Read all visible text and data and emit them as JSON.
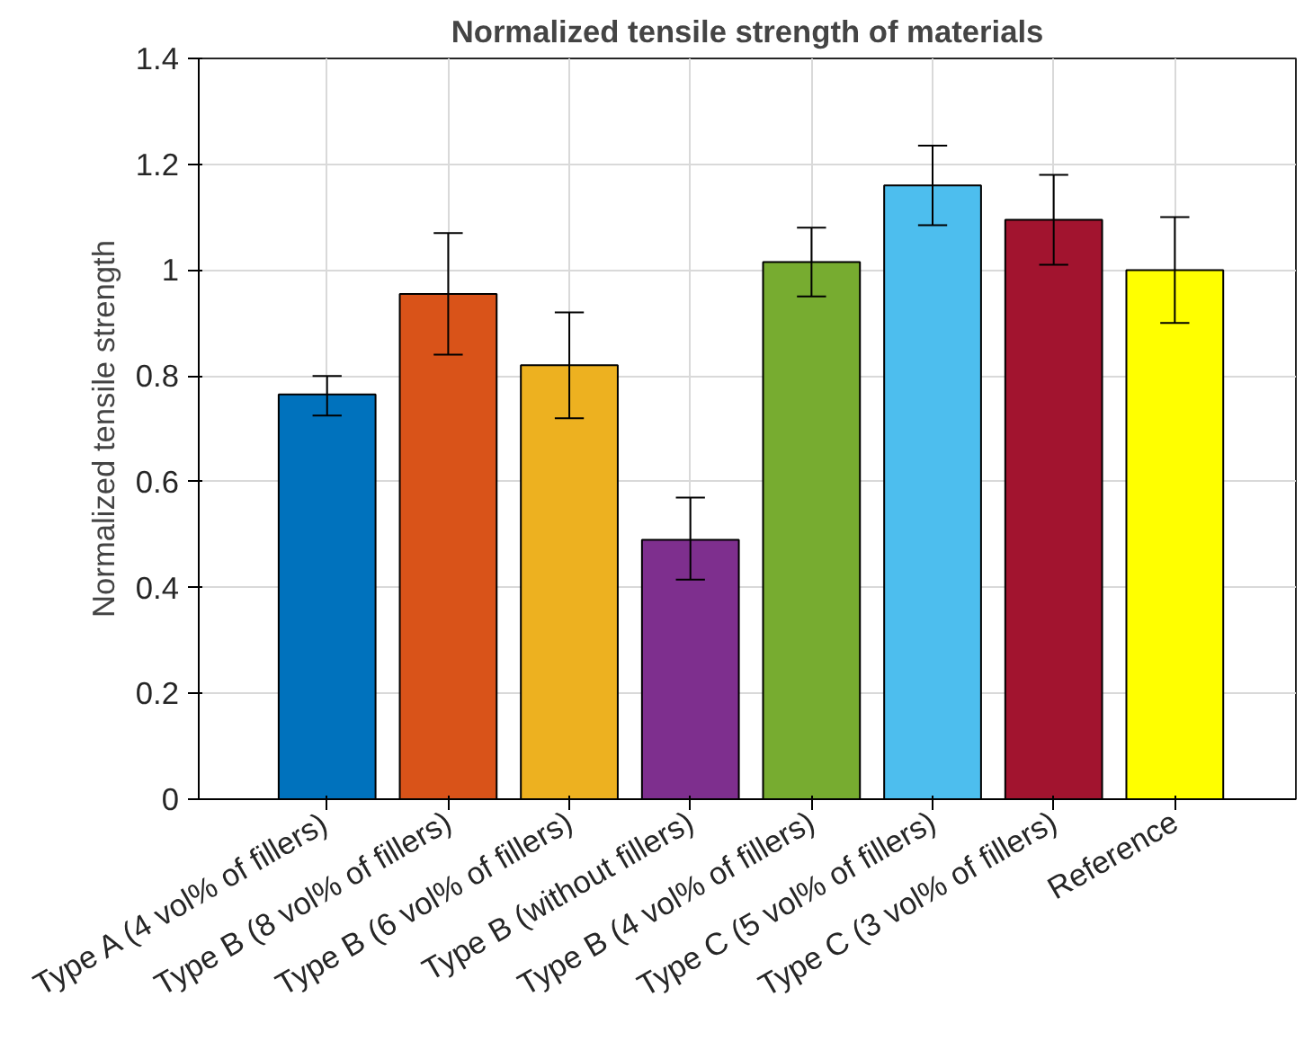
{
  "chart_data": {
    "type": "bar",
    "title": "Normalized tensile strength of materials",
    "ylabel": "Normalized tensile strength",
    "categories": [
      "Type A (4 vol% of fillers)",
      "Type B (8 vol% of fillers)",
      "Type B (6 vol% of fillers)",
      "Type B (without fillers)",
      "Type B (4 vol% of fillers)",
      "Type C (5 vol% of fillers)",
      "Type C (3 vol% of fillers)",
      "Reference"
    ],
    "values": [
      0.765,
      0.955,
      0.82,
      0.49,
      1.015,
      1.16,
      1.095,
      1.0
    ],
    "colors": [
      "#0072bd",
      "#d95319",
      "#edb120",
      "#7e2f8e",
      "#77ac30",
      "#4dbeee",
      "#a2142f",
      "#ffff00"
    ],
    "errors": [
      [
        0.725,
        0.8
      ],
      [
        0.84,
        1.07
      ],
      [
        0.72,
        0.92
      ],
      [
        0.415,
        0.57
      ],
      [
        0.95,
        1.08
      ],
      [
        1.085,
        1.235
      ],
      [
        1.01,
        1.18
      ],
      [
        0.9,
        1.1
      ]
    ],
    "ylim": [
      0,
      1.4
    ],
    "yticks": [
      0,
      0.2,
      0.4,
      0.6,
      0.8,
      1,
      1.2,
      1.4
    ],
    "grid": true
  }
}
